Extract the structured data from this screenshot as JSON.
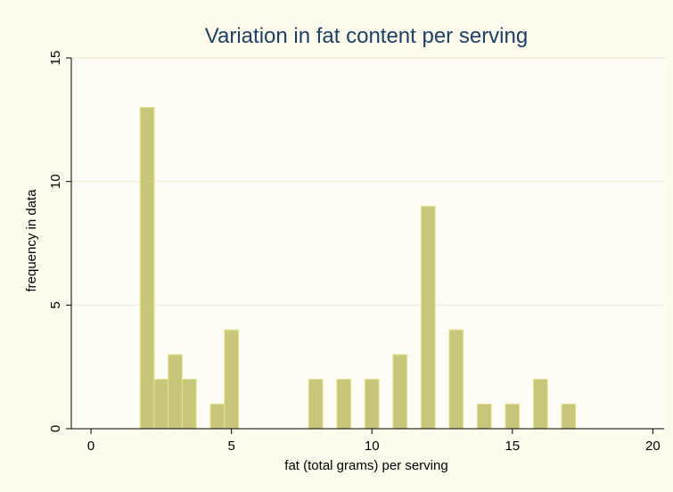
{
  "chart_data": {
    "type": "bar",
    "title": "Variation in fat content per serving",
    "xlabel": "fat (total grams) per serving",
    "ylabel": "frequency in data",
    "xlim": [
      -0.7,
      20.4
    ],
    "ylim": [
      0,
      15
    ],
    "xticks": [
      0,
      5,
      10,
      15,
      20
    ],
    "yticks": [
      0,
      5,
      10,
      15
    ],
    "grid": "horizontal",
    "bin_width": 0.5,
    "bars": [
      {
        "x": 2.0,
        "value": 13
      },
      {
        "x": 2.5,
        "value": 2
      },
      {
        "x": 3.0,
        "value": 3
      },
      {
        "x": 3.5,
        "value": 2
      },
      {
        "x": 4.5,
        "value": 1
      },
      {
        "x": 5.0,
        "value": 4
      },
      {
        "x": 8.0,
        "value": 2
      },
      {
        "x": 9.0,
        "value": 2
      },
      {
        "x": 10.0,
        "value": 2
      },
      {
        "x": 11.0,
        "value": 3
      },
      {
        "x": 12.0,
        "value": 9
      },
      {
        "x": 13.0,
        "value": 4
      },
      {
        "x": 14.0,
        "value": 1
      },
      {
        "x": 15.0,
        "value": 1
      },
      {
        "x": 16.0,
        "value": 2
      },
      {
        "x": 17.0,
        "value": 1
      }
    ],
    "colors": {
      "bar_fill": "#c8c67a",
      "bar_stroke": "#e6e48c",
      "plot_bg": "#fefcf6",
      "frame_bg": "#fdfbec",
      "title": "#1f3f64",
      "grid": "#ece7d2"
    }
  }
}
